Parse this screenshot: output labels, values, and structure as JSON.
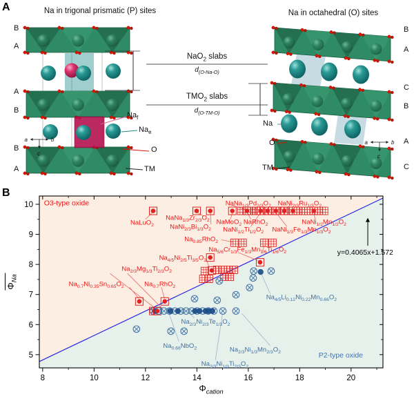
{
  "panel_a": {
    "label": "A",
    "left_structure": {
      "title": "Na in trigonal prismatic (P) sites",
      "stacking_labels": [
        "B",
        "A",
        "A",
        "B",
        "B",
        "A"
      ],
      "legend": {
        "na_f": "Na{f}",
        "na_e": "Na{e}",
        "o": "O",
        "tm": "TM"
      },
      "axis_labels": [
        "a",
        "b",
        "c"
      ]
    },
    "right_structure": {
      "title": "Na in octahedral (O) sites",
      "stacking_labels": [
        "B",
        "A",
        "C",
        "B",
        "A",
        "C"
      ],
      "legend": {
        "na": "Na",
        "o": "O",
        "tm": "TM"
      },
      "axis_labels": [
        "a",
        "b",
        "c"
      ]
    },
    "annotations": {
      "nao2_slabs": "NaO{2} slabs",
      "d_o_na_o": "d{(O-Na-O)}",
      "tmo2_slabs": "TMO{2} slabs",
      "d_o_tm_o": "d{(O-TM-O)}"
    },
    "colors": {
      "slab_green": "#2f8a66",
      "na_teal": "#0f8080",
      "na_f_pink": "#d6336c",
      "prism_crimson": "#b5124f",
      "oxygen_red": "#e01400"
    }
  },
  "panel_b": {
    "label": "B"
  },
  "chart_data": {
    "type": "scatter",
    "xlabel": "Φ{cation}",
    "ylabel": "Φ{Na}",
    "xlim": [
      7.87,
      21.24
    ],
    "ylim": [
      4.56,
      10.275
    ],
    "xticks": [
      8,
      10,
      12,
      14,
      16,
      18,
      20
    ],
    "xminor": [
      9,
      11,
      13,
      15,
      17,
      19,
      21
    ],
    "yticks": [
      5,
      6,
      7,
      8,
      9,
      10
    ],
    "yminor": [
      5.5,
      6.5,
      7.5,
      8.5,
      9.5
    ],
    "boundary_line": {
      "slope": 0.4065,
      "intercept": 1.572,
      "color": "#2323e6"
    },
    "equation": {
      "text": "y=0.4065x+1.572",
      "x": 20.55,
      "y": 8.4,
      "color": "#000000"
    },
    "arrow": {
      "x": 20.65,
      "y_from": 8.62,
      "y_to": 9.55
    },
    "regions": {
      "o3": {
        "label": "O3-type oxide",
        "fill": "#fdeee3",
        "label_color": "#f01414",
        "x": 8.05,
        "y": 10.05
      },
      "p2": {
        "label": "P2-type oxide",
        "fill": "#e7f1ec",
        "label_color": "#3575c8",
        "x": 19.6,
        "y": 4.98
      }
    },
    "series": [
      {
        "name": "O3-type oxide (square + dot)",
        "marker": "grid",
        "color": "#e02424",
        "points": [
          [
            15.73,
            9.78
          ],
          [
            16.13,
            9.78
          ],
          [
            16.3,
            9.78
          ],
          [
            16.62,
            9.78
          ],
          [
            16.94,
            9.78
          ],
          [
            17.23,
            9.78
          ],
          [
            17.56,
            9.78
          ],
          [
            17.93,
            9.78
          ],
          [
            18.15,
            9.78
          ],
          [
            18.34,
            9.78
          ],
          [
            18.74,
            9.78
          ],
          [
            18.95,
            9.78
          ],
          [
            15.46,
            8.72
          ],
          [
            15.78,
            8.72
          ],
          [
            16.62,
            8.72
          ],
          [
            16.94,
            8.72
          ],
          [
            14.31,
            7.78
          ],
          [
            14.79,
            7.82
          ],
          [
            15.01,
            7.82
          ],
          [
            15.22,
            7.82
          ],
          [
            15.44,
            7.82
          ],
          [
            15.06,
            7.59
          ],
          [
            15.28,
            7.59
          ],
          [
            14.25,
            7.52
          ],
          [
            14.47,
            7.52
          ],
          [
            12.3,
            6.45
          ]
        ]
      },
      {
        "name": "P2-type oxide (circle-X)",
        "marker": "xcirc",
        "color": "#4878a8",
        "points": [
          [
            16.21,
            7.78
          ],
          [
            16.89,
            7.78
          ],
          [
            16.19,
            7.55
          ],
          [
            16.05,
            7.23
          ],
          [
            14.87,
            7.45
          ],
          [
            15.52,
            6.99
          ],
          [
            14.79,
            6.81
          ],
          [
            13.91,
            6.86
          ],
          [
            15.01,
            6.45
          ],
          [
            15.52,
            6.45
          ],
          [
            11.65,
            5.85
          ],
          [
            12.99,
            5.78
          ],
          [
            13.5,
            5.78
          ],
          [
            12.3,
            6.45
          ],
          [
            12.51,
            6.45
          ],
          [
            12.72,
            6.45
          ],
          [
            12.94,
            6.45
          ],
          [
            13.15,
            6.45
          ],
          [
            13.37,
            6.45
          ],
          [
            13.58,
            6.45
          ],
          [
            13.8,
            6.45
          ],
          [
            14.01,
            6.45
          ],
          [
            14.23,
            6.45
          ],
          [
            14.44,
            6.45
          ],
          [
            14.66,
            6.45
          ]
        ]
      },
      {
        "name": "P2-type oxide (filled)",
        "marker": "dot",
        "color": "#1d4e89",
        "points": [
          [
            16.48,
            7.75
          ],
          [
            12.38,
            6.45
          ],
          [
            12.97,
            6.45
          ],
          [
            13.26,
            6.45
          ],
          [
            13.93,
            6.45
          ],
          [
            14.1,
            6.45
          ],
          [
            14.34,
            6.45
          ],
          [
            14.45,
            6.45
          ],
          [
            14.6,
            6.45
          ]
        ]
      },
      {
        "name": "O3-type oxide (square + dot)",
        "marker": "sq_dot",
        "color": "#e02424",
        "points": [
          [
            12.3,
            9.78
          ],
          [
            13.99,
            9.78
          ],
          [
            14.52,
            9.78
          ],
          [
            15.38,
            9.78
          ],
          [
            15.95,
            9.78
          ],
          [
            16.48,
            9.78
          ],
          [
            16.75,
            9.78
          ],
          [
            17.07,
            9.78
          ],
          [
            17.4,
            9.78
          ],
          [
            17.74,
            9.78
          ],
          [
            18.55,
            9.78
          ],
          [
            14.52,
            8.23
          ],
          [
            16.46,
            8.07
          ],
          [
            14.58,
            7.8
          ],
          [
            11.76,
            6.77
          ],
          [
            12.75,
            6.77
          ],
          [
            12.46,
            6.45
          ]
        ]
      }
    ],
    "annotations": [
      {
        "text": "NaLuO{2}",
        "x": 11.87,
        "y": 9.4,
        "color": "#f01414",
        "anchor": "middle"
      },
      {
        "text": "NaNa{1/3}Zr{2/3}O{2}",
        "x": 13.64,
        "y": 9.56,
        "color": "#f01414",
        "anchor": "middle"
      },
      {
        "text": "NaNi{2/3}Bi{1/3}O{2}",
        "x": 13.75,
        "y": 9.26,
        "color": "#f01414",
        "anchor": "middle"
      },
      {
        "text": "NaNa{1/3}Pd{2/3}O{2}",
        "x": 16.0,
        "y": 10.04,
        "color": "#f01414",
        "anchor": "middle"
      },
      {
        "text": "NaNi{2/3}Ru{1/3}O{2}",
        "x": 18.0,
        "y": 10.04,
        "color": "#f01414",
        "anchor": "middle"
      },
      {
        "text": "NaMoO{2}",
        "x": 15.25,
        "y": 9.42,
        "color": "#f01414",
        "anchor": "middle"
      },
      {
        "text": "NaRhO{2}",
        "x": 16.29,
        "y": 9.42,
        "color": "#f01414",
        "anchor": "middle"
      },
      {
        "text": "NaNi{1/2}Ti{1/2}O{2}",
        "x": 15.81,
        "y": 9.17,
        "color": "#f01414",
        "anchor": "middle"
      },
      {
        "text": "NaNi{1/3}Fe{1/3}Mn{1/3}O{2}",
        "x": 18.07,
        "y": 9.17,
        "color": "#f01414",
        "anchor": "middle"
      },
      {
        "text": "NaNi{1/2}Mn{1/2}O{2}",
        "x": 18.95,
        "y": 9.42,
        "color": "#f01414",
        "anchor": "middle"
      },
      {
        "text": "Na{0.85}RhO{2}",
        "x": 14.17,
        "y": 8.85,
        "color": "#f01414",
        "anchor": "middle"
      },
      {
        "text": "Na{5/6}Cr{1/3}Fe{1/3}Mn{1/6}Ti{1/6}O{2}",
        "x": 15.97,
        "y": 8.5,
        "color": "#f01414",
        "anchor": "middle"
      },
      {
        "text": "Na{4/5}Ni{2/5}Ti{3/5}O{2}",
        "x": 13.45,
        "y": 8.23,
        "color": "#f01414",
        "anchor": "middle"
      },
      {
        "text": "Na{2/3}Mg{1/3}Ti{2/3}O{2}",
        "x": 12.05,
        "y": 7.86,
        "color": "#f01414",
        "anchor": "middle"
      },
      {
        "text": "Na{0.7}Ni{0.35}Sn{0.65}O{2}",
        "x": 10.09,
        "y": 7.36,
        "color": "#f01414",
        "anchor": "middle"
      },
      {
        "text": "Na{0.7}RhO{2}",
        "x": 12.56,
        "y": 7.36,
        "color": "#f01414",
        "anchor": "middle"
      },
      {
        "text": "Na{4/5}Li{0.12}Ni{0.22}Mn{0.66}O{2}",
        "x": 18.07,
        "y": 6.92,
        "color": "#3e6f9e",
        "anchor": "middle"
      },
      {
        "text": "Na{2/3}Ni{2/3}Te{1/3}O{2}",
        "x": 14.34,
        "y": 6.1,
        "color": "#3e6f9e",
        "anchor": "middle"
      },
      {
        "text": "Na{0.66}NbO{2}",
        "x": 13.34,
        "y": 5.3,
        "color": "#3e6f9e",
        "anchor": "middle"
      },
      {
        "text": "Na{2/3}Ni{1/3}Mn{2/3}O{2}",
        "x": 16.27,
        "y": 5.18,
        "color": "#3e6f9e",
        "anchor": "middle"
      },
      {
        "text": "Na{2/3}Ni{1/3}Ti{2/3}O{2}",
        "x": 15.09,
        "y": 4.7,
        "color": "#3e6f9e",
        "anchor": "middle"
      }
    ],
    "leaders": [
      [
        12.0,
        9.5,
        12.26,
        9.72,
        "#e66868"
      ],
      [
        14.28,
        9.6,
        14.02,
        9.72,
        "#e66868"
      ],
      [
        14.55,
        9.33,
        14.53,
        9.7,
        "#e66868"
      ],
      [
        15.35,
        9.97,
        15.9,
        9.83,
        "#e66868"
      ],
      [
        17.62,
        9.97,
        17.44,
        9.83,
        "#e66868"
      ],
      [
        15.3,
        9.5,
        15.38,
        9.7,
        "#e66868"
      ],
      [
        16.1,
        9.5,
        15.98,
        9.7,
        "#e66868"
      ],
      [
        16.1,
        9.26,
        16.46,
        9.7,
        "#e66868"
      ],
      [
        17.5,
        9.26,
        17.1,
        9.7,
        "#e66868"
      ],
      [
        18.6,
        9.5,
        18.56,
        9.7,
        "#e66868"
      ],
      [
        14.95,
        8.82,
        15.4,
        8.74,
        "#e66868"
      ],
      [
        15.6,
        8.4,
        16.4,
        8.12,
        "#e66868"
      ],
      [
        16.55,
        8.42,
        16.62,
        8.64,
        "#e66868"
      ],
      [
        14.38,
        8.14,
        14.48,
        7.9,
        "#e66868"
      ],
      [
        10.62,
        7.7,
        12.4,
        6.53,
        "#e66868"
      ],
      [
        11.3,
        7.7,
        12.66,
        6.53,
        "#e66868"
      ],
      [
        11.38,
        7.24,
        11.74,
        6.87,
        "#e66868"
      ],
      [
        12.62,
        7.24,
        12.74,
        6.87,
        "#e66868"
      ],
      [
        16.85,
        7.03,
        16.52,
        7.66,
        "#9ab4cc"
      ],
      [
        13.9,
        6.22,
        13.72,
        6.37,
        "#9ab4cc"
      ],
      [
        13.3,
        5.44,
        12.92,
        6.36,
        "#9ab4cc"
      ],
      [
        16.85,
        5.3,
        15.75,
        6.37,
        "#9ab4cc"
      ],
      [
        14.72,
        4.82,
        15.0,
        6.37,
        "#9ab4cc"
      ]
    ]
  }
}
